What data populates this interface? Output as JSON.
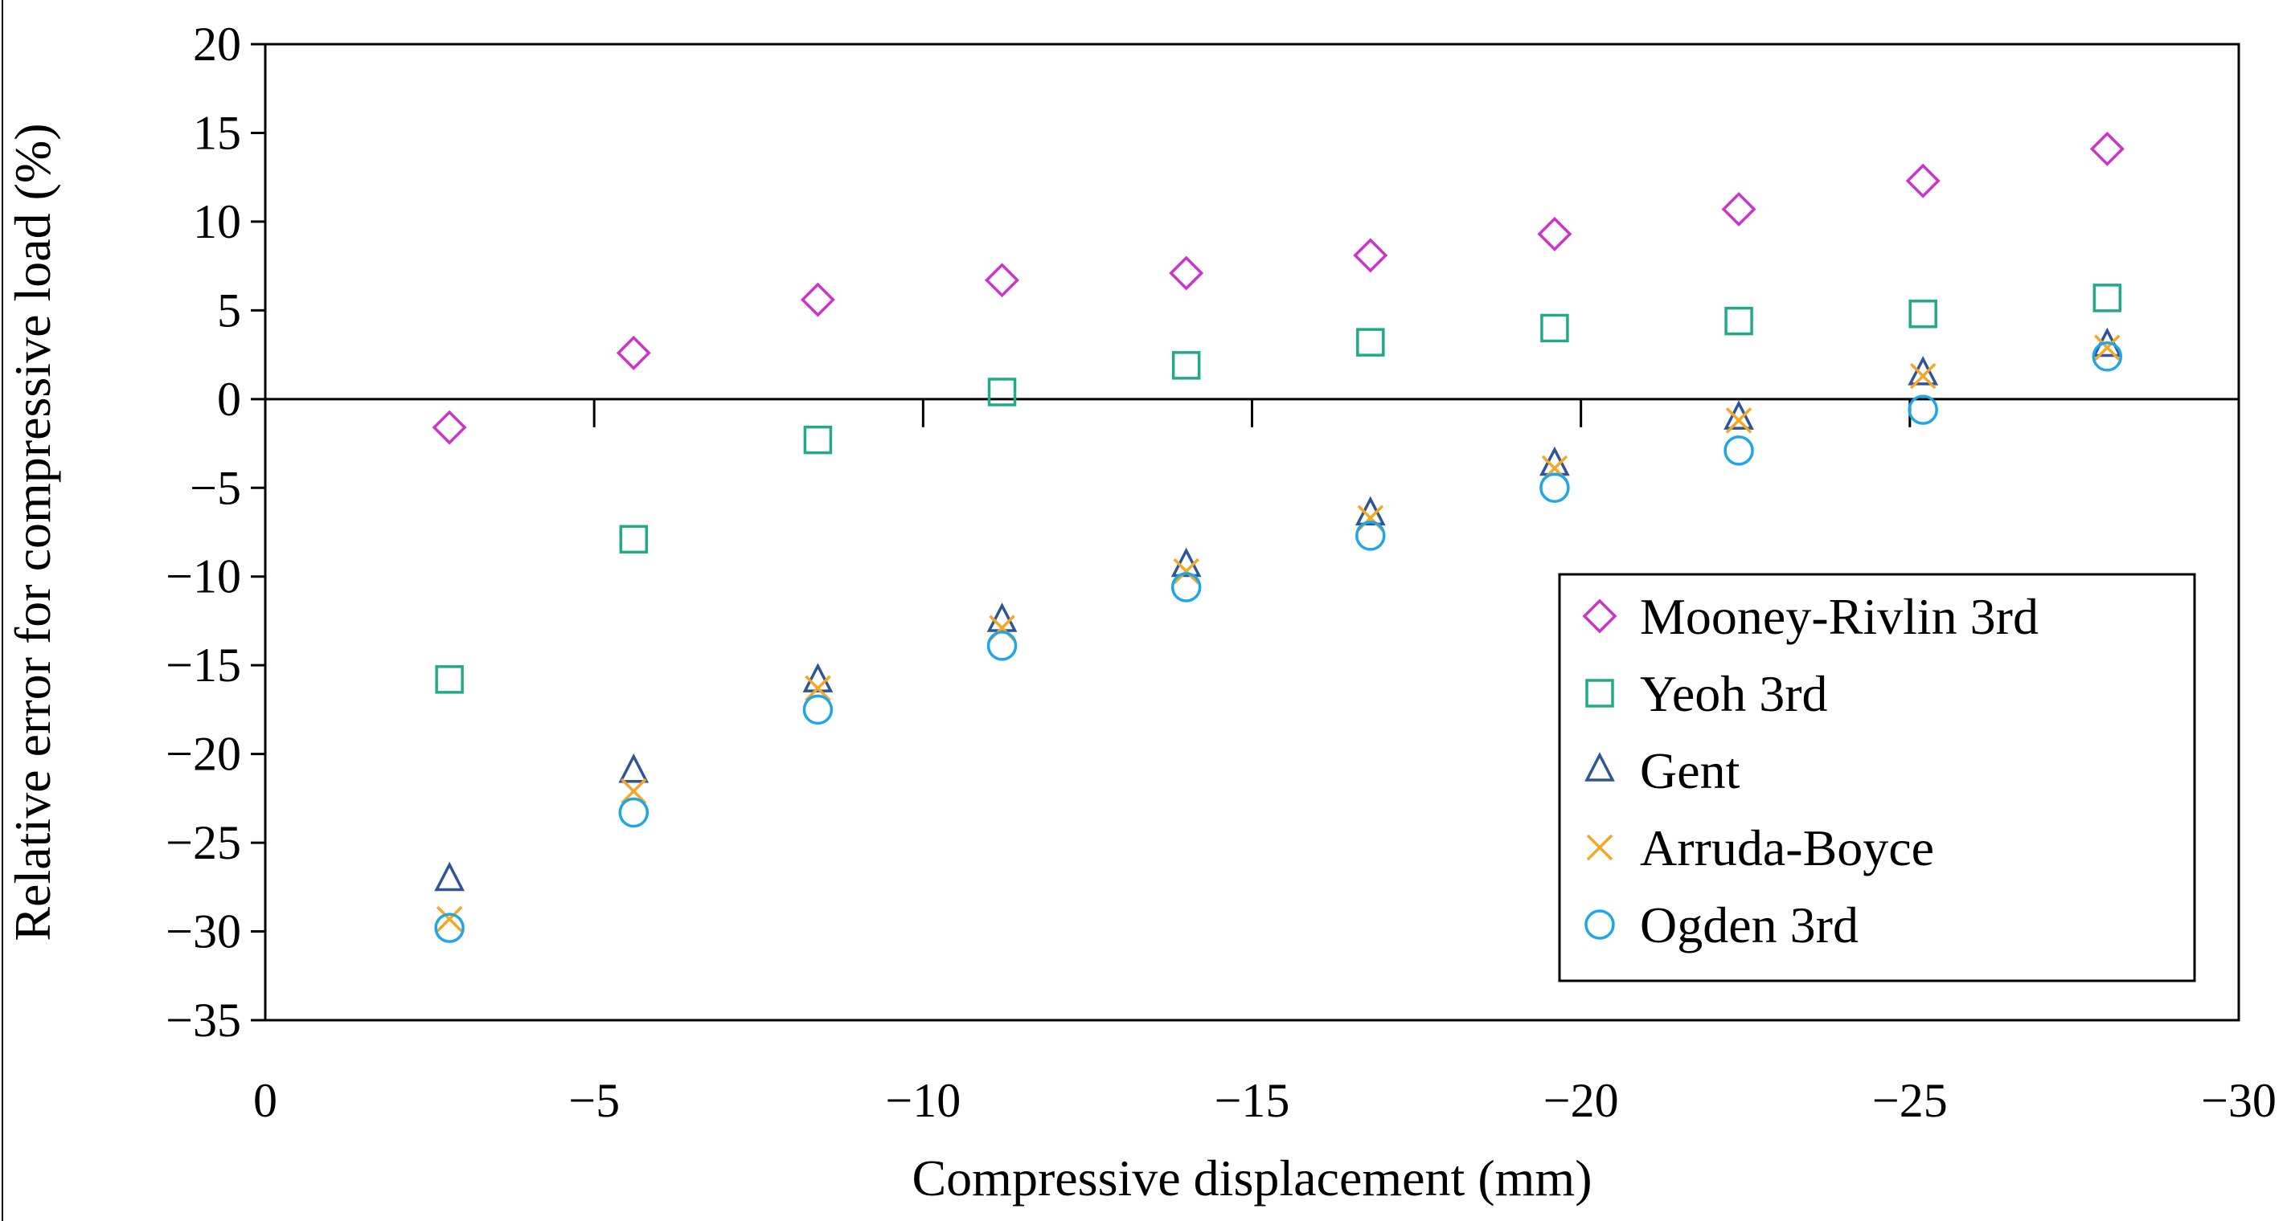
{
  "chart_data": {
    "type": "scatter",
    "title": "",
    "xlabel": "Compressive displacement (mm)",
    "ylabel": "Relative error for compressive load (%)",
    "xlim": [
      0,
      -30
    ],
    "ylim": [
      -35,
      20
    ],
    "xticks": [
      0,
      -5,
      -10,
      -15,
      -20,
      -25,
      -30
    ],
    "yticks": [
      20,
      15,
      10,
      5,
      0,
      -5,
      -10,
      -15,
      -20,
      -25,
      -30,
      -35
    ],
    "xtick_labels": [
      "0",
      "−5",
      "−10",
      "−15",
      "−20",
      "−25",
      "−30"
    ],
    "ytick_labels": [
      "20",
      "15",
      "10",
      "5",
      "0",
      "−5",
      "−10",
      "−15",
      "−20",
      "−25",
      "−30",
      "−35"
    ],
    "grid": false,
    "legend_position": "right",
    "x": [
      -2.8,
      -5.6,
      -8.4,
      -11.2,
      -14.0,
      -16.8,
      -19.6,
      -22.4,
      -25.2,
      -28.0
    ],
    "series": [
      {
        "name": "Mooney-Rivlin 3rd",
        "marker": "diamond",
        "color": "#CC33CC",
        "values": [
          -1.6,
          2.6,
          5.6,
          6.7,
          7.1,
          8.1,
          9.3,
          10.7,
          12.3,
          14.1
        ]
      },
      {
        "name": "Yeoh 3rd",
        "marker": "square",
        "color": "#22AA88",
        "values": [
          -15.8,
          -7.9,
          -2.3,
          0.4,
          1.9,
          3.2,
          4.0,
          4.4,
          4.8,
          5.7
        ]
      },
      {
        "name": "Gent",
        "marker": "triangle",
        "color": "#2F5597",
        "values": [
          -27.1,
          -21.0,
          -15.9,
          -12.5,
          -9.4,
          -6.5,
          -3.7,
          -1.1,
          1.4,
          3.0
        ]
      },
      {
        "name": "Arruda-Boyce",
        "marker": "x",
        "color": "#F5A623",
        "values": [
          -29.3,
          -22.1,
          -16.3,
          -12.9,
          -9.7,
          -6.7,
          -3.9,
          -1.2,
          1.3,
          2.9
        ]
      },
      {
        "name": "Ogden 3rd",
        "marker": "circle",
        "color": "#1EA6E8",
        "values": [
          -29.8,
          -23.3,
          -17.5,
          -13.9,
          -10.6,
          -7.7,
          -5.0,
          -2.9,
          -0.6,
          2.4
        ]
      }
    ]
  }
}
